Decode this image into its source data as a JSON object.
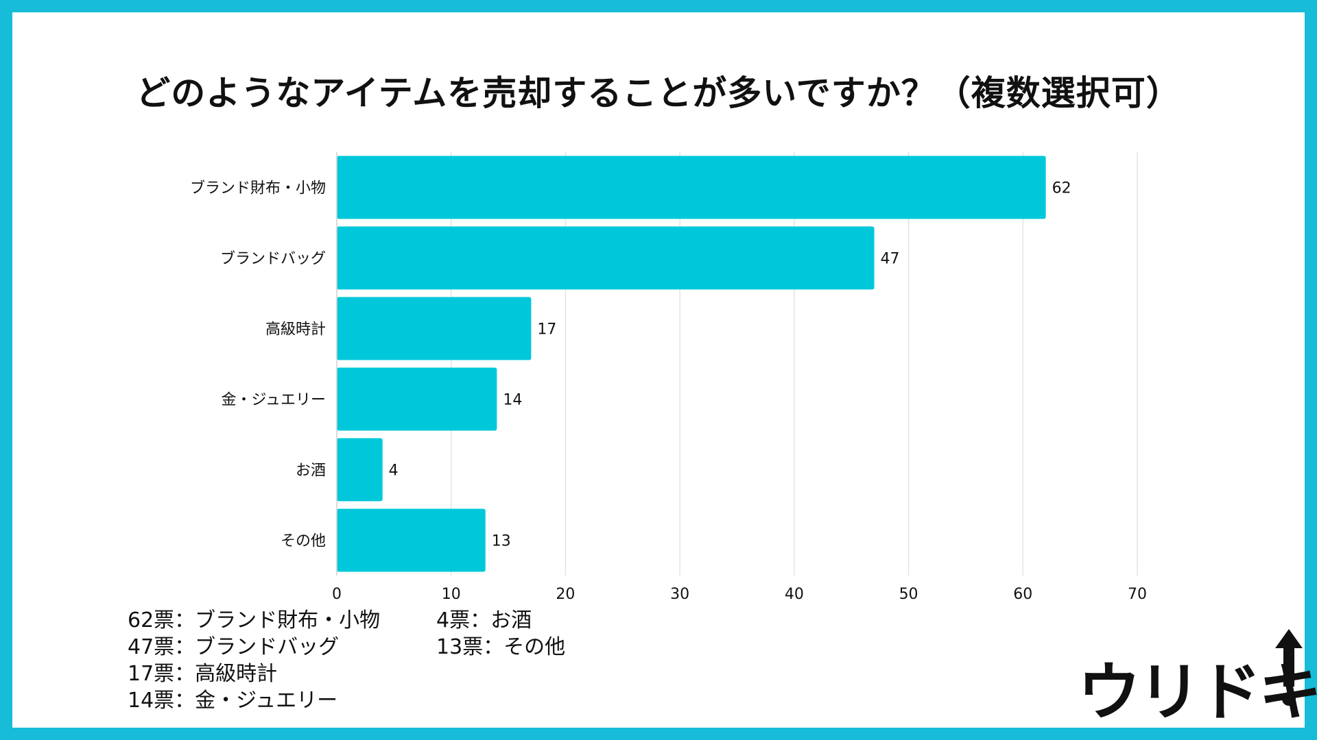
{
  "title": "どのようなアイテムを売却することが多いですか？（複数選択可）",
  "chart_data": {
    "type": "bar",
    "orientation": "horizontal",
    "categories": [
      "ブランド財布・小物",
      "ブランドバッグ",
      "高級時計",
      "金・ジュエリー",
      "お酒",
      "その他"
    ],
    "values": [
      62,
      47,
      17,
      14,
      4,
      13
    ],
    "xlim": [
      0,
      70
    ],
    "xticks": [
      0,
      10,
      20,
      30,
      40,
      50,
      60,
      70
    ],
    "grid": true,
    "bar_color": "#00c8da"
  },
  "legend": {
    "col1": [
      "62票：ブランド財布・小物",
      "47票：ブランドバッグ",
      "17票：高級時計",
      "14票：金・ジュエリー"
    ],
    "col2": [
      "4票：お酒",
      "13票：その他"
    ]
  },
  "logo": {
    "text": "ウリドキ",
    "color": "#111111"
  },
  "colors": {
    "frame": "#16bcd8",
    "background": "#ffffff",
    "bar": "#00c8da",
    "grid": "#e3e3e3"
  }
}
